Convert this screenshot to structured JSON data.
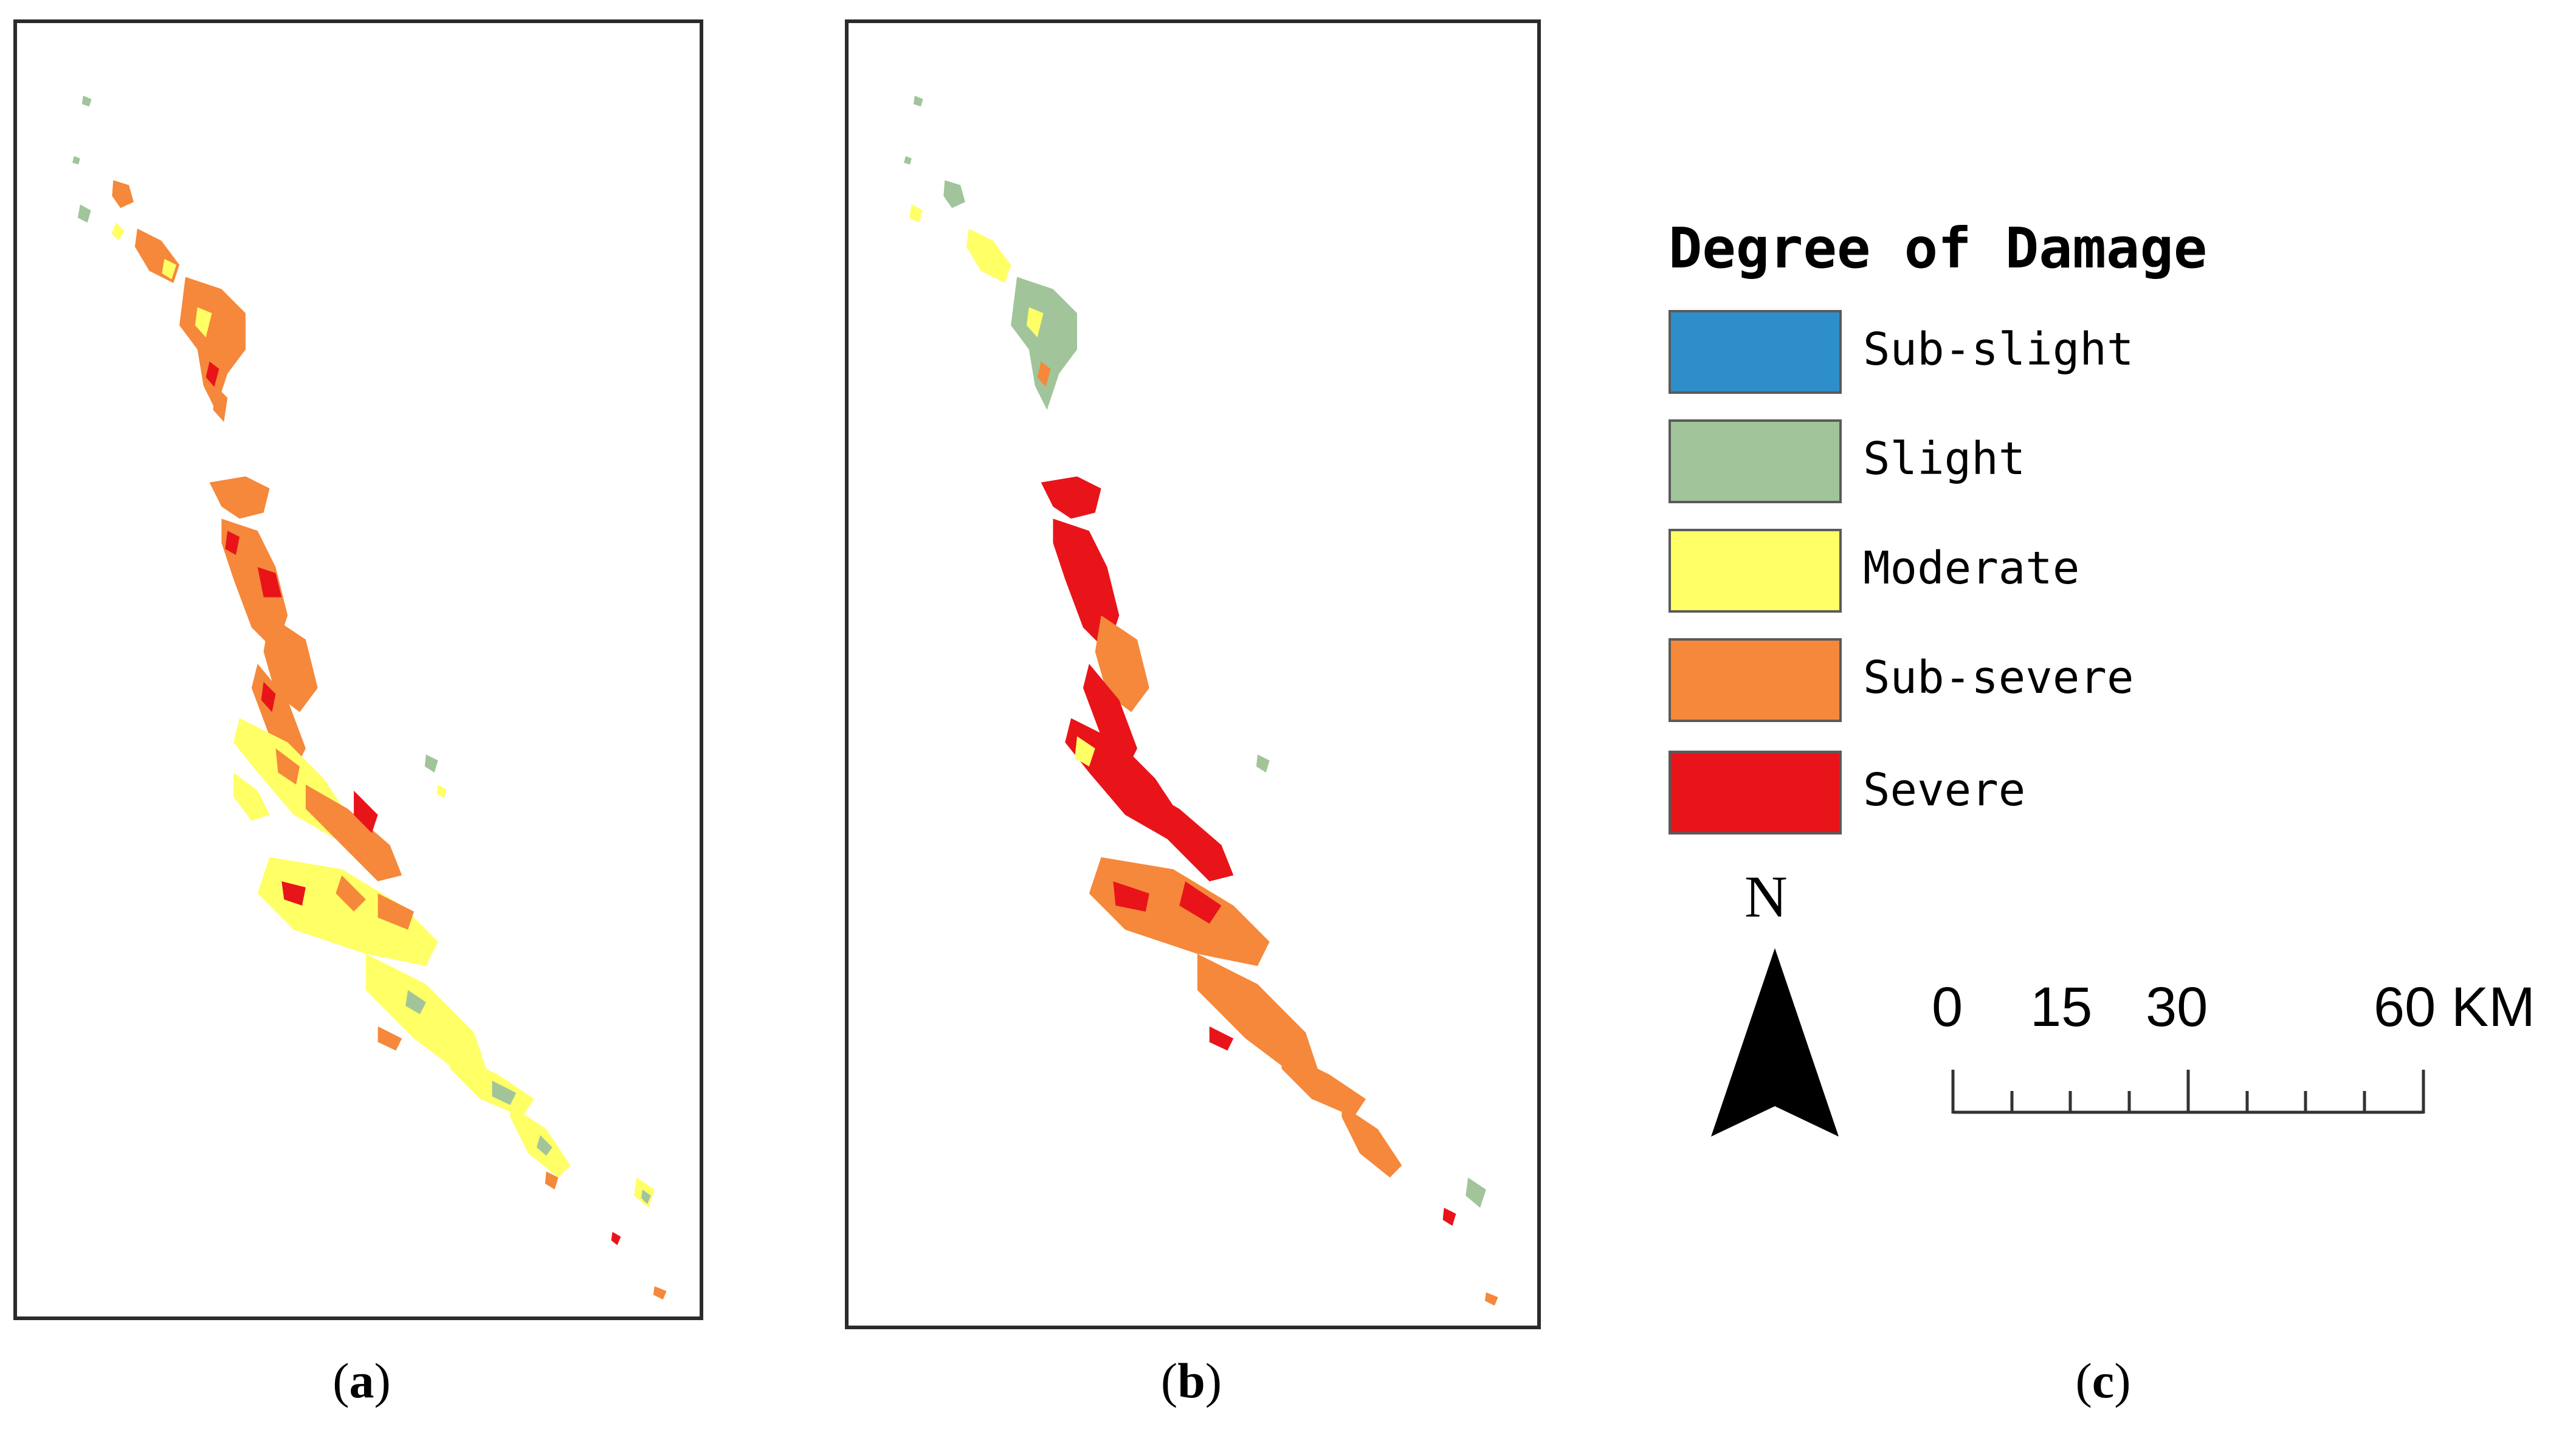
{
  "panels": [
    {
      "id": "a",
      "caption_letter": "a"
    },
    {
      "id": "b",
      "caption_letter": "b"
    },
    {
      "id": "c",
      "caption_letter": "c"
    }
  ],
  "legend": {
    "title": "Degree of Damage",
    "items": [
      {
        "label": "Sub-slight",
        "color": "#2e8ec9"
      },
      {
        "label": "Slight",
        "color": "#a1c49a"
      },
      {
        "label": "Moderate",
        "color": "#ffff66"
      },
      {
        "label": "Sub-severe",
        "color": "#f5883a"
      },
      {
        "label": "Severe",
        "color": "#e8141a"
      }
    ]
  },
  "north_arrow": {
    "label": "N"
  },
  "scale_bar": {
    "labels": [
      "0",
      "15",
      "30",
      "60 KM"
    ]
  }
}
